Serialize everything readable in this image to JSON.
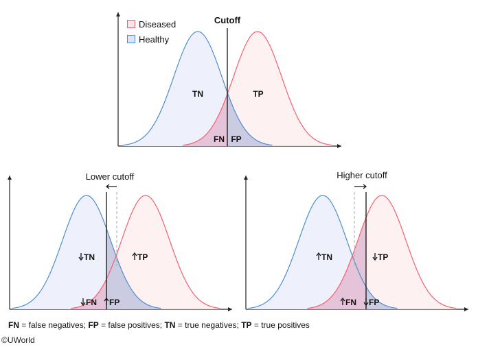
{
  "colors": {
    "healthy_stroke": "#4a8fd0",
    "healthy_fill": "#eef0fc",
    "diseased_stroke": "#f2606e",
    "diseased_fill": "#fdeeee",
    "fn_fill": "#e5c3d8",
    "fp_fill": "#cbcbe2"
  },
  "legend": {
    "diseased": "Diseased",
    "healthy": "Healthy"
  },
  "panels": [
    {
      "title": "Cutoff",
      "tn": "TN",
      "tp": "TP",
      "fn": "FN",
      "fp": "FP",
      "arrow": "none"
    },
    {
      "title": "Lower cutoff",
      "tn": "TN",
      "tp": "TP",
      "fn": "FN",
      "fp": "FP",
      "tn_dir": "down",
      "tp_dir": "up",
      "fn_dir": "down",
      "fp_dir": "up",
      "arrow": "left"
    },
    {
      "title": "Higher cutoff",
      "tn": "TN",
      "tp": "TP",
      "fn": "FN",
      "fp": "FP",
      "tn_dir": "up",
      "tp_dir": "down",
      "fn_dir": "up",
      "fp_dir": "down",
      "arrow": "right"
    }
  ],
  "footnote": [
    {
      "abbr": "FN",
      "def": " = false negatives; "
    },
    {
      "abbr": "FP",
      "def": " = false positives; "
    },
    {
      "abbr": "TN",
      "def": " = true negatives; "
    },
    {
      "abbr": "TP",
      "def": " = true positives"
    }
  ],
  "copyright": "©UWorld"
}
